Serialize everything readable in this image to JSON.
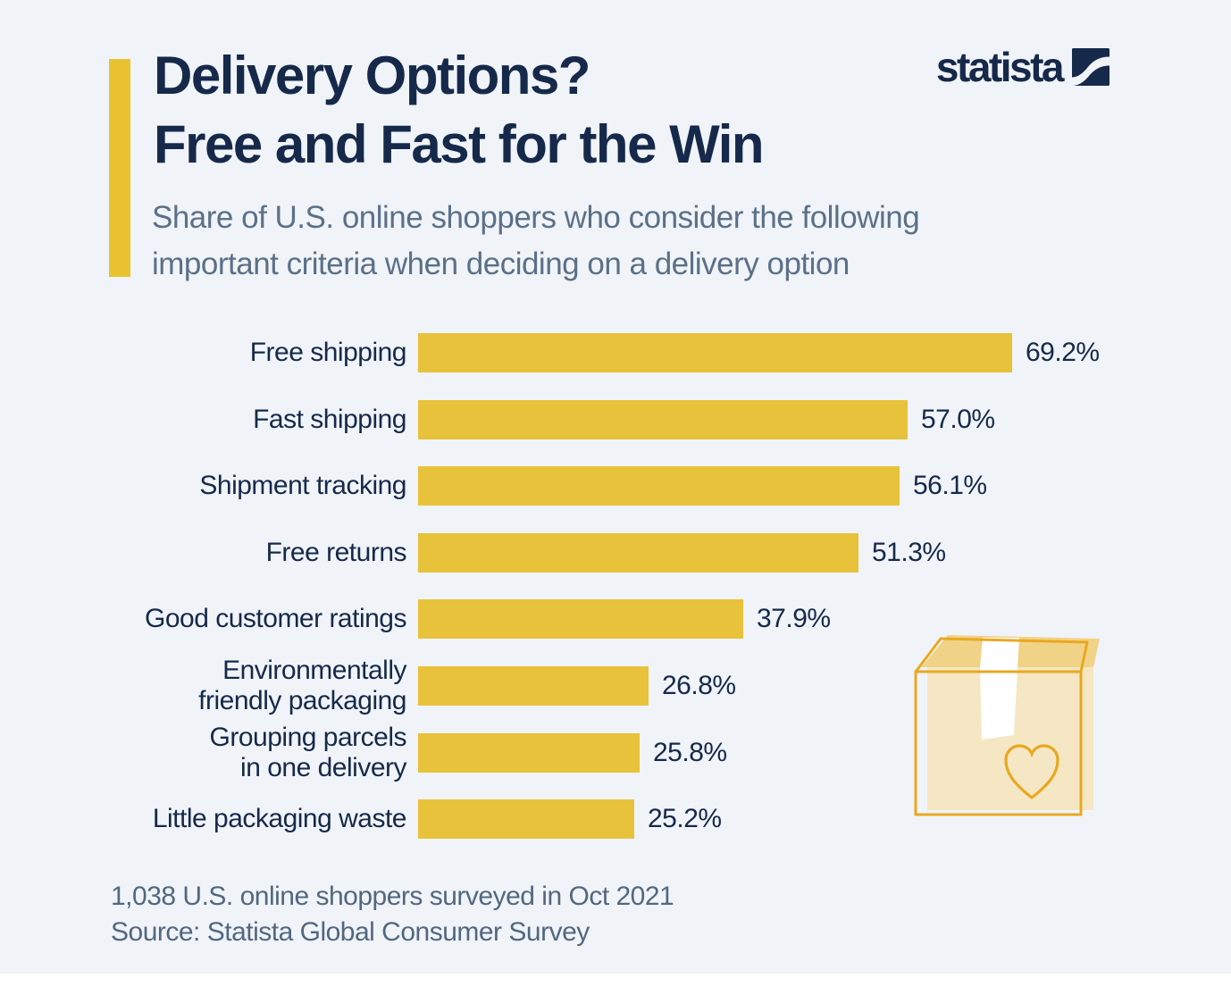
{
  "header": {
    "title": "Delivery Options?\nFree and Fast for the Win",
    "subtitle": "Share of U.S. online shoppers who consider the following\nimportant criteria when deciding on a delivery option",
    "brand": "statista"
  },
  "chart_data": {
    "type": "bar",
    "orientation": "horizontal",
    "title": "Delivery Options? Free and Fast for the Win",
    "subtitle": "Share of U.S. online shoppers who consider the following important criteria when deciding on a delivery option",
    "categories": [
      "Free shipping",
      "Fast shipping",
      "Shipment tracking",
      "Free returns",
      "Good customer ratings",
      "Environmentally\nfriendly packaging",
      "Grouping parcels\nin one delivery",
      "Little packaging waste"
    ],
    "values": [
      69.2,
      57.0,
      56.1,
      51.3,
      37.9,
      26.8,
      25.8,
      25.2
    ],
    "value_labels": [
      "69.2%",
      "57.0%",
      "56.1%",
      "51.3%",
      "37.9%",
      "26.8%",
      "25.8%",
      "25.2%"
    ],
    "unit": "%",
    "xlim": [
      0,
      100
    ],
    "grid": false,
    "legend_position": "none",
    "bar_color": "#e8c23a"
  },
  "footer": {
    "note": "1,038 U.S. online shoppers surveyed in Oct 2021",
    "source": "Source: Statista Global Consumer Survey"
  },
  "colors": {
    "background": "#f0f4f8",
    "bottom_strip": "#ffffff",
    "accent_yellow": "#e9c32f",
    "bar_yellow": "#e8c23a",
    "title_navy": "#16294a",
    "subtitle_slate": "#5b7088",
    "footer_slate": "#52677f",
    "box_outline": "#e9a821",
    "box_front_fill": "#f5e7c3",
    "box_top_fill": "#f1d387"
  },
  "icons": {
    "brand_mark": "statista-logo-icon",
    "illustration": "cardboard-box-heart-icon"
  }
}
